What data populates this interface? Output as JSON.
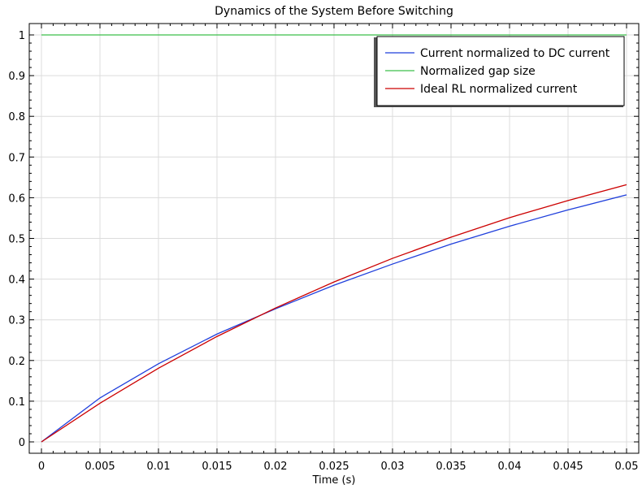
{
  "chart_data": {
    "type": "line",
    "title": "Dynamics of the System Before Switching",
    "xlabel": "Time (s)",
    "ylabel": "",
    "xlim": [
      0,
      0.05
    ],
    "ylim": [
      0,
      1
    ],
    "x_ticks": [
      "0",
      "0.005",
      "0.01",
      "0.015",
      "0.02",
      "0.025",
      "0.03",
      "0.035",
      "0.04",
      "0.045",
      "0.05"
    ],
    "y_ticks": [
      "0",
      "0.1",
      "0.2",
      "0.3",
      "0.4",
      "0.5",
      "0.6",
      "0.7",
      "0.8",
      "0.9",
      "1"
    ],
    "grid": true,
    "legend_position": "top-right",
    "x": [
      0,
      0.005,
      0.01,
      0.015,
      0.02,
      0.025,
      0.03,
      0.035,
      0.04,
      0.045,
      0.05
    ],
    "series": [
      {
        "name": "Current normalized to DC current",
        "color": "#1f3fdc",
        "values": [
          0,
          0.108,
          0.192,
          0.265,
          0.327,
          0.385,
          0.437,
          0.486,
          0.53,
          0.57,
          0.607
        ]
      },
      {
        "name": "Normalized gap size",
        "color": "#3cbf4a",
        "values": [
          1,
          1,
          1,
          1,
          1,
          1,
          1,
          1,
          1,
          1,
          1
        ]
      },
      {
        "name": "Ideal RL normalized current",
        "color": "#cc0000",
        "values": [
          0,
          0.095,
          0.181,
          0.259,
          0.329,
          0.393,
          0.451,
          0.503,
          0.551,
          0.593,
          0.632
        ]
      }
    ]
  }
}
